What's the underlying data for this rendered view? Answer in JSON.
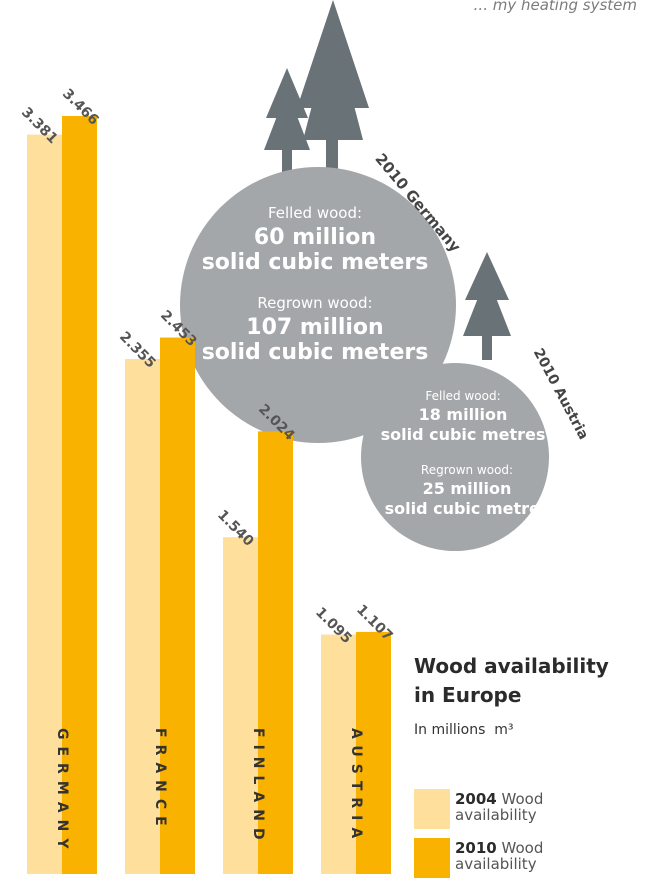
{
  "tagline": "... my heating system",
  "chart_data": {
    "type": "bar",
    "title": "Wood availability in Europe",
    "title_lines": [
      "Wood availability",
      "in Europe"
    ],
    "unit_prefix": "In millions",
    "unit": "m³",
    "categories": [
      "GERMANY",
      "FRANCE",
      "FINLAND",
      "AUSTRIA"
    ],
    "series": [
      {
        "year": "2004",
        "label_suffix": "Wood availability",
        "color": "#fee09c",
        "values": [
          3381,
          2355,
          1540,
          1095
        ],
        "labels": [
          "3.381",
          "2.355",
          "1.540",
          "1.095"
        ]
      },
      {
        "year": "2010",
        "label_suffix": "Wood availability",
        "color": "#f9b200",
        "values": [
          3466,
          2453,
          2024,
          1107
        ],
        "labels": [
          "3.466",
          "2.453",
          "2.024",
          "1.107"
        ]
      }
    ],
    "ylim": [
      0,
      3466
    ],
    "grid": false,
    "legend_position": "bottom-right"
  },
  "callouts": [
    {
      "label": "2010 Germany",
      "felled_label": "Felled wood:",
      "felled_value": "60 million",
      "felled_unit": "solid cubic meters",
      "regrown_label": "Regrown wood:",
      "regrown_value": "107 million",
      "regrown_unit": "solid cubic meters"
    },
    {
      "label": "2010 Austria",
      "felled_label": "Felled wood:",
      "felled_value": "18 million",
      "felled_unit": "solid cubic metres",
      "regrown_label": "Regrown wood:",
      "regrown_value": "25 million",
      "regrown_unit": "solid cubic metres"
    }
  ],
  "colors": {
    "circle": "#a4a7a9",
    "tree": "#687277",
    "label": "#444444"
  }
}
